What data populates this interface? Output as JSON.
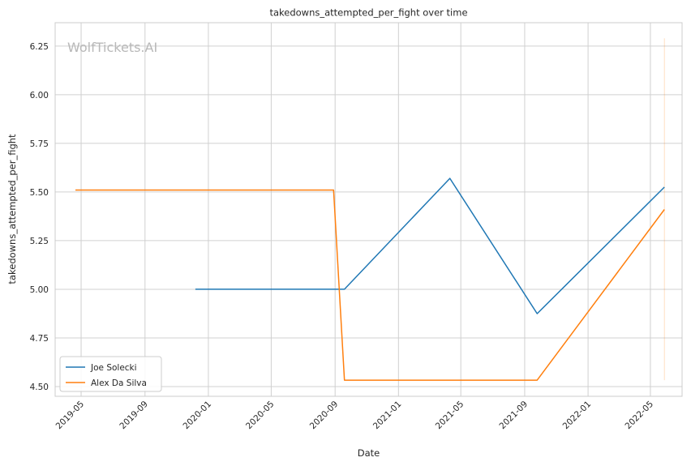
{
  "chart_data": {
    "type": "line",
    "title": "takedowns_attempted_per_fight over time",
    "xlabel": "Date",
    "ylabel": "takedowns_attempted_per_fight",
    "watermark": "WolfTickets.AI",
    "x_ticks": [
      "2019-05",
      "2019-09",
      "2020-01",
      "2020-05",
      "2020-09",
      "2021-01",
      "2021-05",
      "2021-09",
      "2022-01",
      "2022-05"
    ],
    "y_ticks": [
      4.5,
      4.75,
      5.0,
      5.25,
      5.5,
      5.75,
      6.0,
      6.25
    ],
    "xlim": [
      "2019-03-12",
      "2022-07-01"
    ],
    "ylim": [
      4.45,
      6.37
    ],
    "grid": true,
    "legend": "lower-left",
    "series": [
      {
        "name": "Joe Solecki",
        "color": "#1f77b4",
        "points": [
          {
            "x": "2019-12-07",
            "y": 5.0
          },
          {
            "x": "2020-09-19",
            "y": 5.0
          },
          {
            "x": "2021-04-10",
            "y": 5.57
          },
          {
            "x": "2021-09-25",
            "y": 4.875
          },
          {
            "x": "2022-05-28",
            "y": 5.525
          }
        ]
      },
      {
        "name": "Alex Da Silva",
        "color": "#ff7f0e",
        "points": [
          {
            "x": "2019-04-20",
            "y": 5.51
          },
          {
            "x": "2020-08-29",
            "y": 5.51
          },
          {
            "x": "2020-09-19",
            "y": 4.533
          },
          {
            "x": "2021-09-25",
            "y": 4.533
          },
          {
            "x": "2022-05-28",
            "y": 5.41
          }
        ]
      }
    ],
    "range_line": {
      "x": "2022-05-28",
      "y_min": 4.533,
      "y_max": 6.29,
      "color": "#ff7f0e"
    }
  }
}
